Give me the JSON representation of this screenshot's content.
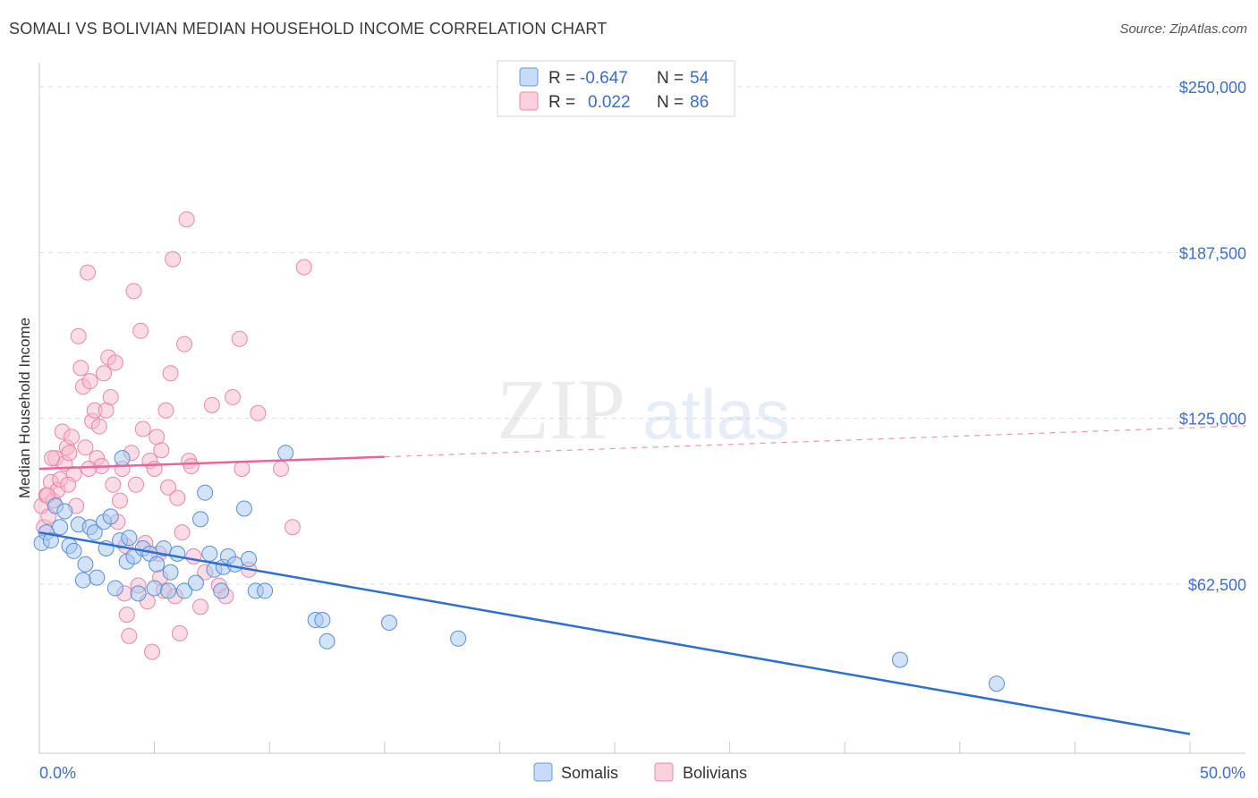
{
  "header": {
    "title": "SOMALI VS BOLIVIAN MEDIAN HOUSEHOLD INCOME CORRELATION CHART",
    "source": "Source: ZipAtlas.com"
  },
  "watermark": {
    "zip": "ZIP",
    "atlas": "atlas"
  },
  "colors": {
    "somali": "#a8c8f0",
    "somali_edge": "#5a8fd6",
    "somali_line": "#2e6fd1",
    "bolivian": "#f7b8cb",
    "bolivian_edge": "#e68aa6",
    "bolivian_line": "#e8649a",
    "label_blue": "#3f6fc7",
    "grid": "#dddddd"
  },
  "legend": {
    "rows": [
      {
        "r_label": "R =",
        "r_value": "-0.647",
        "n_label": "N =",
        "n_value": "54"
      },
      {
        "r_label": "R =",
        "r_value": "0.022",
        "n_label": "N =",
        "n_value": "86"
      }
    ]
  },
  "bottom_legend": [
    "Somalis",
    "Bolivians"
  ],
  "chart_data": {
    "type": "scatter",
    "title": "SOMALI VS BOLIVIAN MEDIAN HOUSEHOLD INCOME CORRELATION CHART",
    "xlabel": "",
    "ylabel": "Median Household Income",
    "xlim": [
      0,
      50
    ],
    "ylim": [
      0,
      260000
    ],
    "x_tick_labels": [
      "0.0%",
      "50.0%"
    ],
    "y_ticks": [
      62500,
      125000,
      187500,
      250000
    ],
    "y_tick_labels": [
      "$62,500",
      "$125,000",
      "$187,500",
      "$250,000"
    ],
    "series": [
      {
        "name": "Somalis",
        "r": -0.647,
        "n": 54,
        "trend": {
          "x": [
            0,
            50
          ],
          "y": [
            82000,
            6000
          ],
          "dashed_from": null
        },
        "points": [
          [
            0.1,
            78000
          ],
          [
            0.3,
            82000
          ],
          [
            0.5,
            79000
          ],
          [
            0.7,
            92000
          ],
          [
            0.9,
            84000
          ],
          [
            1.1,
            90000
          ],
          [
            1.3,
            77000
          ],
          [
            1.5,
            75000
          ],
          [
            1.7,
            85000
          ],
          [
            1.9,
            64000
          ],
          [
            2.0,
            70000
          ],
          [
            2.2,
            84000
          ],
          [
            2.4,
            82000
          ],
          [
            2.5,
            65000
          ],
          [
            2.8,
            86000
          ],
          [
            2.9,
            76000
          ],
          [
            3.1,
            88000
          ],
          [
            3.5,
            79000
          ],
          [
            3.6,
            110000
          ],
          [
            3.8,
            71000
          ],
          [
            3.9,
            80000
          ],
          [
            4.1,
            73000
          ],
          [
            4.3,
            59000
          ],
          [
            4.5,
            76000
          ],
          [
            4.8,
            74000
          ],
          [
            5.0,
            61000
          ],
          [
            5.1,
            70000
          ],
          [
            5.4,
            76000
          ],
          [
            5.6,
            60000
          ],
          [
            5.7,
            67000
          ],
          [
            6.0,
            74000
          ],
          [
            6.3,
            60000
          ],
          [
            7.0,
            87000
          ],
          [
            7.2,
            97000
          ],
          [
            7.4,
            74000
          ],
          [
            7.6,
            68000
          ],
          [
            7.9,
            60000
          ],
          [
            8.0,
            69000
          ],
          [
            8.2,
            73000
          ],
          [
            8.5,
            70000
          ],
          [
            8.9,
            91000
          ],
          [
            9.1,
            72000
          ],
          [
            9.4,
            60000
          ],
          [
            9.8,
            60000
          ],
          [
            10.7,
            112000
          ],
          [
            12.0,
            49000
          ],
          [
            12.3,
            49000
          ],
          [
            12.5,
            41000
          ],
          [
            15.2,
            48000
          ],
          [
            18.2,
            42000
          ],
          [
            37.4,
            34000
          ],
          [
            41.6,
            25000
          ],
          [
            3.3,
            61000
          ],
          [
            6.8,
            63000
          ]
        ]
      },
      {
        "name": "Bolivians",
        "r": 0.022,
        "n": 86,
        "trend": {
          "x": [
            0,
            50
          ],
          "y": [
            106000,
            121000
          ],
          "dashed_from": 15
        },
        "points": [
          [
            0.1,
            92000
          ],
          [
            0.2,
            84000
          ],
          [
            0.3,
            96000
          ],
          [
            0.4,
            88000
          ],
          [
            0.5,
            101000
          ],
          [
            0.6,
            94000
          ],
          [
            0.7,
            110000
          ],
          [
            0.8,
            98000
          ],
          [
            0.9,
            102000
          ],
          [
            1.0,
            120000
          ],
          [
            1.1,
            108000
          ],
          [
            1.2,
            114000
          ],
          [
            1.3,
            112000
          ],
          [
            1.4,
            118000
          ],
          [
            1.5,
            104000
          ],
          [
            1.6,
            92000
          ],
          [
            1.7,
            156000
          ],
          [
            1.8,
            144000
          ],
          [
            1.9,
            137000
          ],
          [
            2.0,
            114000
          ],
          [
            2.1,
            180000
          ],
          [
            2.2,
            139000
          ],
          [
            2.3,
            124000
          ],
          [
            2.4,
            128000
          ],
          [
            2.5,
            110000
          ],
          [
            2.6,
            122000
          ],
          [
            2.7,
            107000
          ],
          [
            2.8,
            142000
          ],
          [
            2.9,
            128000
          ],
          [
            3.0,
            148000
          ],
          [
            3.1,
            133000
          ],
          [
            3.2,
            100000
          ],
          [
            3.3,
            146000
          ],
          [
            3.4,
            86000
          ],
          [
            3.5,
            94000
          ],
          [
            3.6,
            106000
          ],
          [
            3.7,
            59000
          ],
          [
            3.8,
            51000
          ],
          [
            3.9,
            43000
          ],
          [
            4.0,
            112000
          ],
          [
            4.1,
            173000
          ],
          [
            4.2,
            100000
          ],
          [
            4.3,
            62000
          ],
          [
            4.4,
            158000
          ],
          [
            4.5,
            121000
          ],
          [
            4.6,
            78000
          ],
          [
            4.7,
            56000
          ],
          [
            4.8,
            109000
          ],
          [
            4.9,
            37000
          ],
          [
            5.0,
            106000
          ],
          [
            5.1,
            118000
          ],
          [
            5.2,
            74000
          ],
          [
            5.3,
            113000
          ],
          [
            5.4,
            60000
          ],
          [
            5.5,
            128000
          ],
          [
            5.6,
            99000
          ],
          [
            5.7,
            142000
          ],
          [
            5.8,
            185000
          ],
          [
            5.9,
            58000
          ],
          [
            6.0,
            95000
          ],
          [
            6.1,
            44000
          ],
          [
            6.2,
            82000
          ],
          [
            6.3,
            153000
          ],
          [
            6.4,
            200000
          ],
          [
            6.5,
            109000
          ],
          [
            6.6,
            107000
          ],
          [
            6.7,
            73000
          ],
          [
            7.0,
            54000
          ],
          [
            7.2,
            67000
          ],
          [
            7.5,
            130000
          ],
          [
            7.8,
            62000
          ],
          [
            8.1,
            58000
          ],
          [
            8.4,
            133000
          ],
          [
            8.7,
            155000
          ],
          [
            8.8,
            106000
          ],
          [
            9.1,
            68000
          ],
          [
            9.5,
            127000
          ],
          [
            10.5,
            106000
          ],
          [
            11.0,
            84000
          ],
          [
            11.5,
            182000
          ],
          [
            0.35,
            96000
          ],
          [
            0.55,
            110000
          ],
          [
            1.25,
            100000
          ],
          [
            2.15,
            106000
          ],
          [
            3.75,
            77000
          ],
          [
            5.25,
            65000
          ]
        ]
      }
    ]
  }
}
